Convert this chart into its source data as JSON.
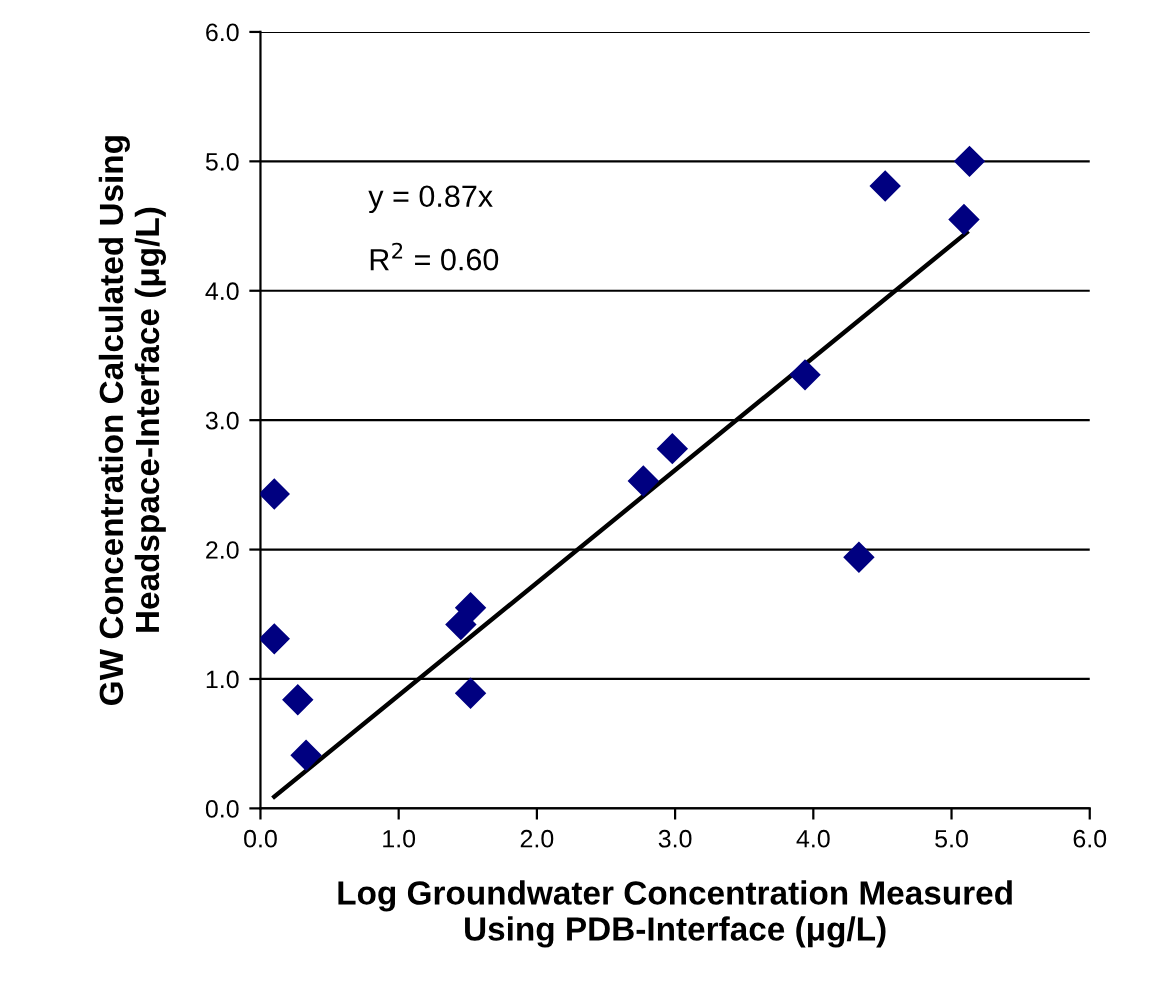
{
  "chart_data": {
    "type": "scatter",
    "xlabel": "Log Groundwater Concentration Measured\nUsing PDB-Interface (μg/L)",
    "ylabel": "GW Concentration Calculated Using\nHeadspace-Interface (μg/L)",
    "annotations": [
      "y = 0.87x",
      "R$^{2}$ = 0.60"
    ],
    "x": [
      0.1,
      0.1,
      0.27,
      0.33,
      1.45,
      1.52,
      1.52,
      2.77,
      2.98,
      3.94,
      4.33,
      4.52,
      5.09,
      5.13
    ],
    "series": [
      {
        "color": "#000080",
        "marker": "diamond",
        "values": [
          2.43,
          1.31,
          0.84,
          0.41,
          1.42,
          1.55,
          0.89,
          2.53,
          2.78,
          3.35,
          1.94,
          4.81,
          4.55,
          5.0
        ]
      },
      {
        "type": "line",
        "color": "#000000",
        "x": [
          0.1,
          5.11
        ],
        "values": [
          0.09,
          4.45
        ],
        "marker": "none"
      }
    ],
    "xlim": [
      0,
      6
    ],
    "ylim": [
      0,
      6
    ],
    "xticks": [
      {
        "value": 0,
        "label": "0.0"
      },
      {
        "value": 1,
        "label": "1.0"
      },
      {
        "value": 2,
        "label": "2.0"
      },
      {
        "value": 3,
        "label": "3.0"
      },
      {
        "value": 4,
        "label": "4.0"
      },
      {
        "value": 5,
        "label": "5.0"
      },
      {
        "value": 6,
        "label": "6.0"
      }
    ],
    "yticks": [
      {
        "value": 0,
        "label": "0.0"
      },
      {
        "value": 1,
        "label": "1.0"
      },
      {
        "value": 2,
        "label": "2.0"
      },
      {
        "value": 3,
        "label": "3.0"
      },
      {
        "value": 4,
        "label": "4.0"
      },
      {
        "value": 5,
        "label": "5.0"
      },
      {
        "value": 6,
        "label": "6.0"
      }
    ],
    "grid": "y",
    "legend": false
  }
}
